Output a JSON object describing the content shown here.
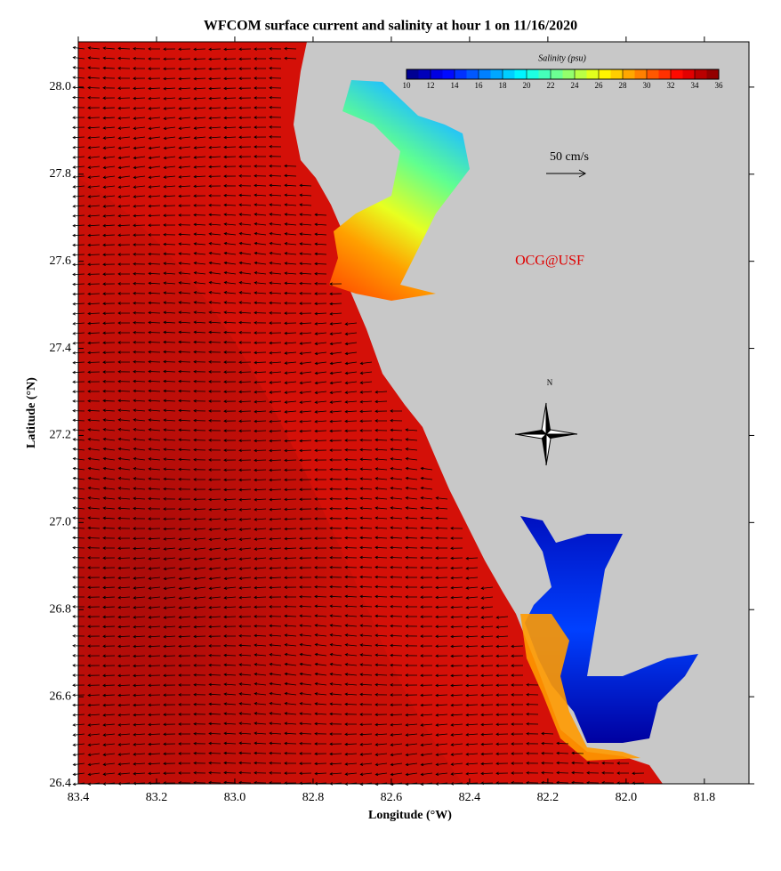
{
  "chart_data": {
    "type": "map",
    "title": "WFCOM surface current and salinity at hour 1 on 11/16/2020",
    "x_label": "Longitude (°W)",
    "y_label": "Latitude (°N)",
    "xlim": [
      83.4,
      81.686
    ],
    "ylim": [
      26.4,
      28.104
    ],
    "xticks": [
      83.4,
      83.2,
      {
        "value": 83,
        "label": "83.0"
      },
      82.8,
      82.6,
      82.4,
      82.2,
      {
        "value": 82,
        "label": "82.0"
      },
      81.8
    ],
    "yticks": [
      26.4,
      26.6,
      26.8,
      {
        "value": 27,
        "label": "27.0"
      },
      27.2,
      27.4,
      27.6,
      27.8,
      {
        "value": 28,
        "label": "28.0"
      }
    ],
    "colorbar": {
      "label": "Salinity (psu)",
      "lim": [
        10,
        36
      ],
      "ticks": [
        10,
        12,
        14,
        16,
        18,
        20,
        22,
        24,
        26,
        28,
        30,
        32,
        34,
        36
      ]
    },
    "scale_label": "50 cm/s",
    "credit": "OCG@USF",
    "north_label": "N"
  }
}
